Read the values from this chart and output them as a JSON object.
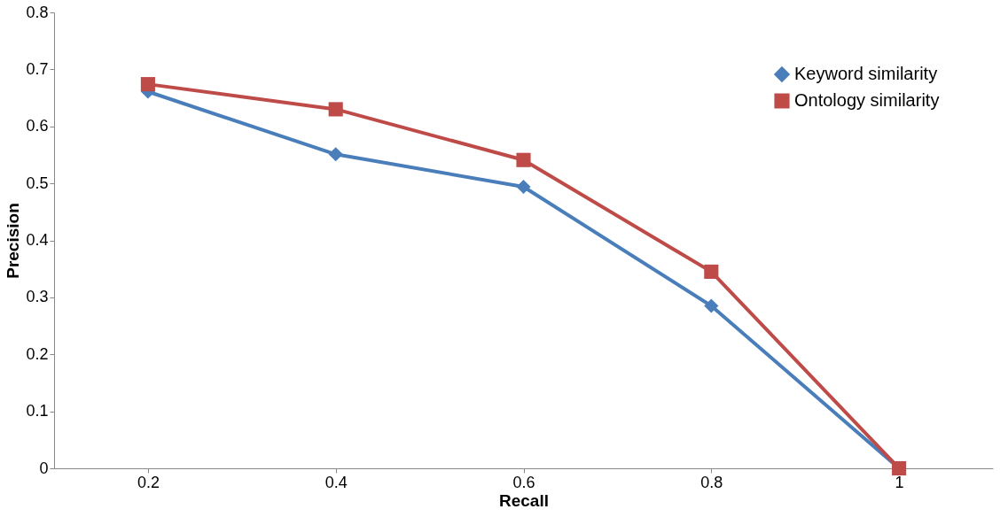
{
  "chart_data": {
    "type": "line",
    "xlabel": "Recall",
    "ylabel": "Precision",
    "categories": [
      "0.2",
      "0.4",
      "0.6",
      "0.8",
      "1"
    ],
    "series": [
      {
        "name": "Keyword similarity",
        "color": "#4a7ebb",
        "marker": "diamond",
        "values": [
          0.661,
          0.551,
          0.494,
          0.285,
          0
        ]
      },
      {
        "name": "Ontology similarity",
        "color": "#be4b48",
        "marker": "square",
        "values": [
          0.674,
          0.63,
          0.541,
          0.345,
          0
        ]
      }
    ],
    "ylim": [
      0,
      0.8
    ],
    "yticks": [
      0,
      0.1,
      0.2,
      0.3,
      0.4,
      0.5,
      0.6,
      0.7,
      0.8
    ],
    "grid": false,
    "legend": "top right",
    "line_style": "solid"
  }
}
